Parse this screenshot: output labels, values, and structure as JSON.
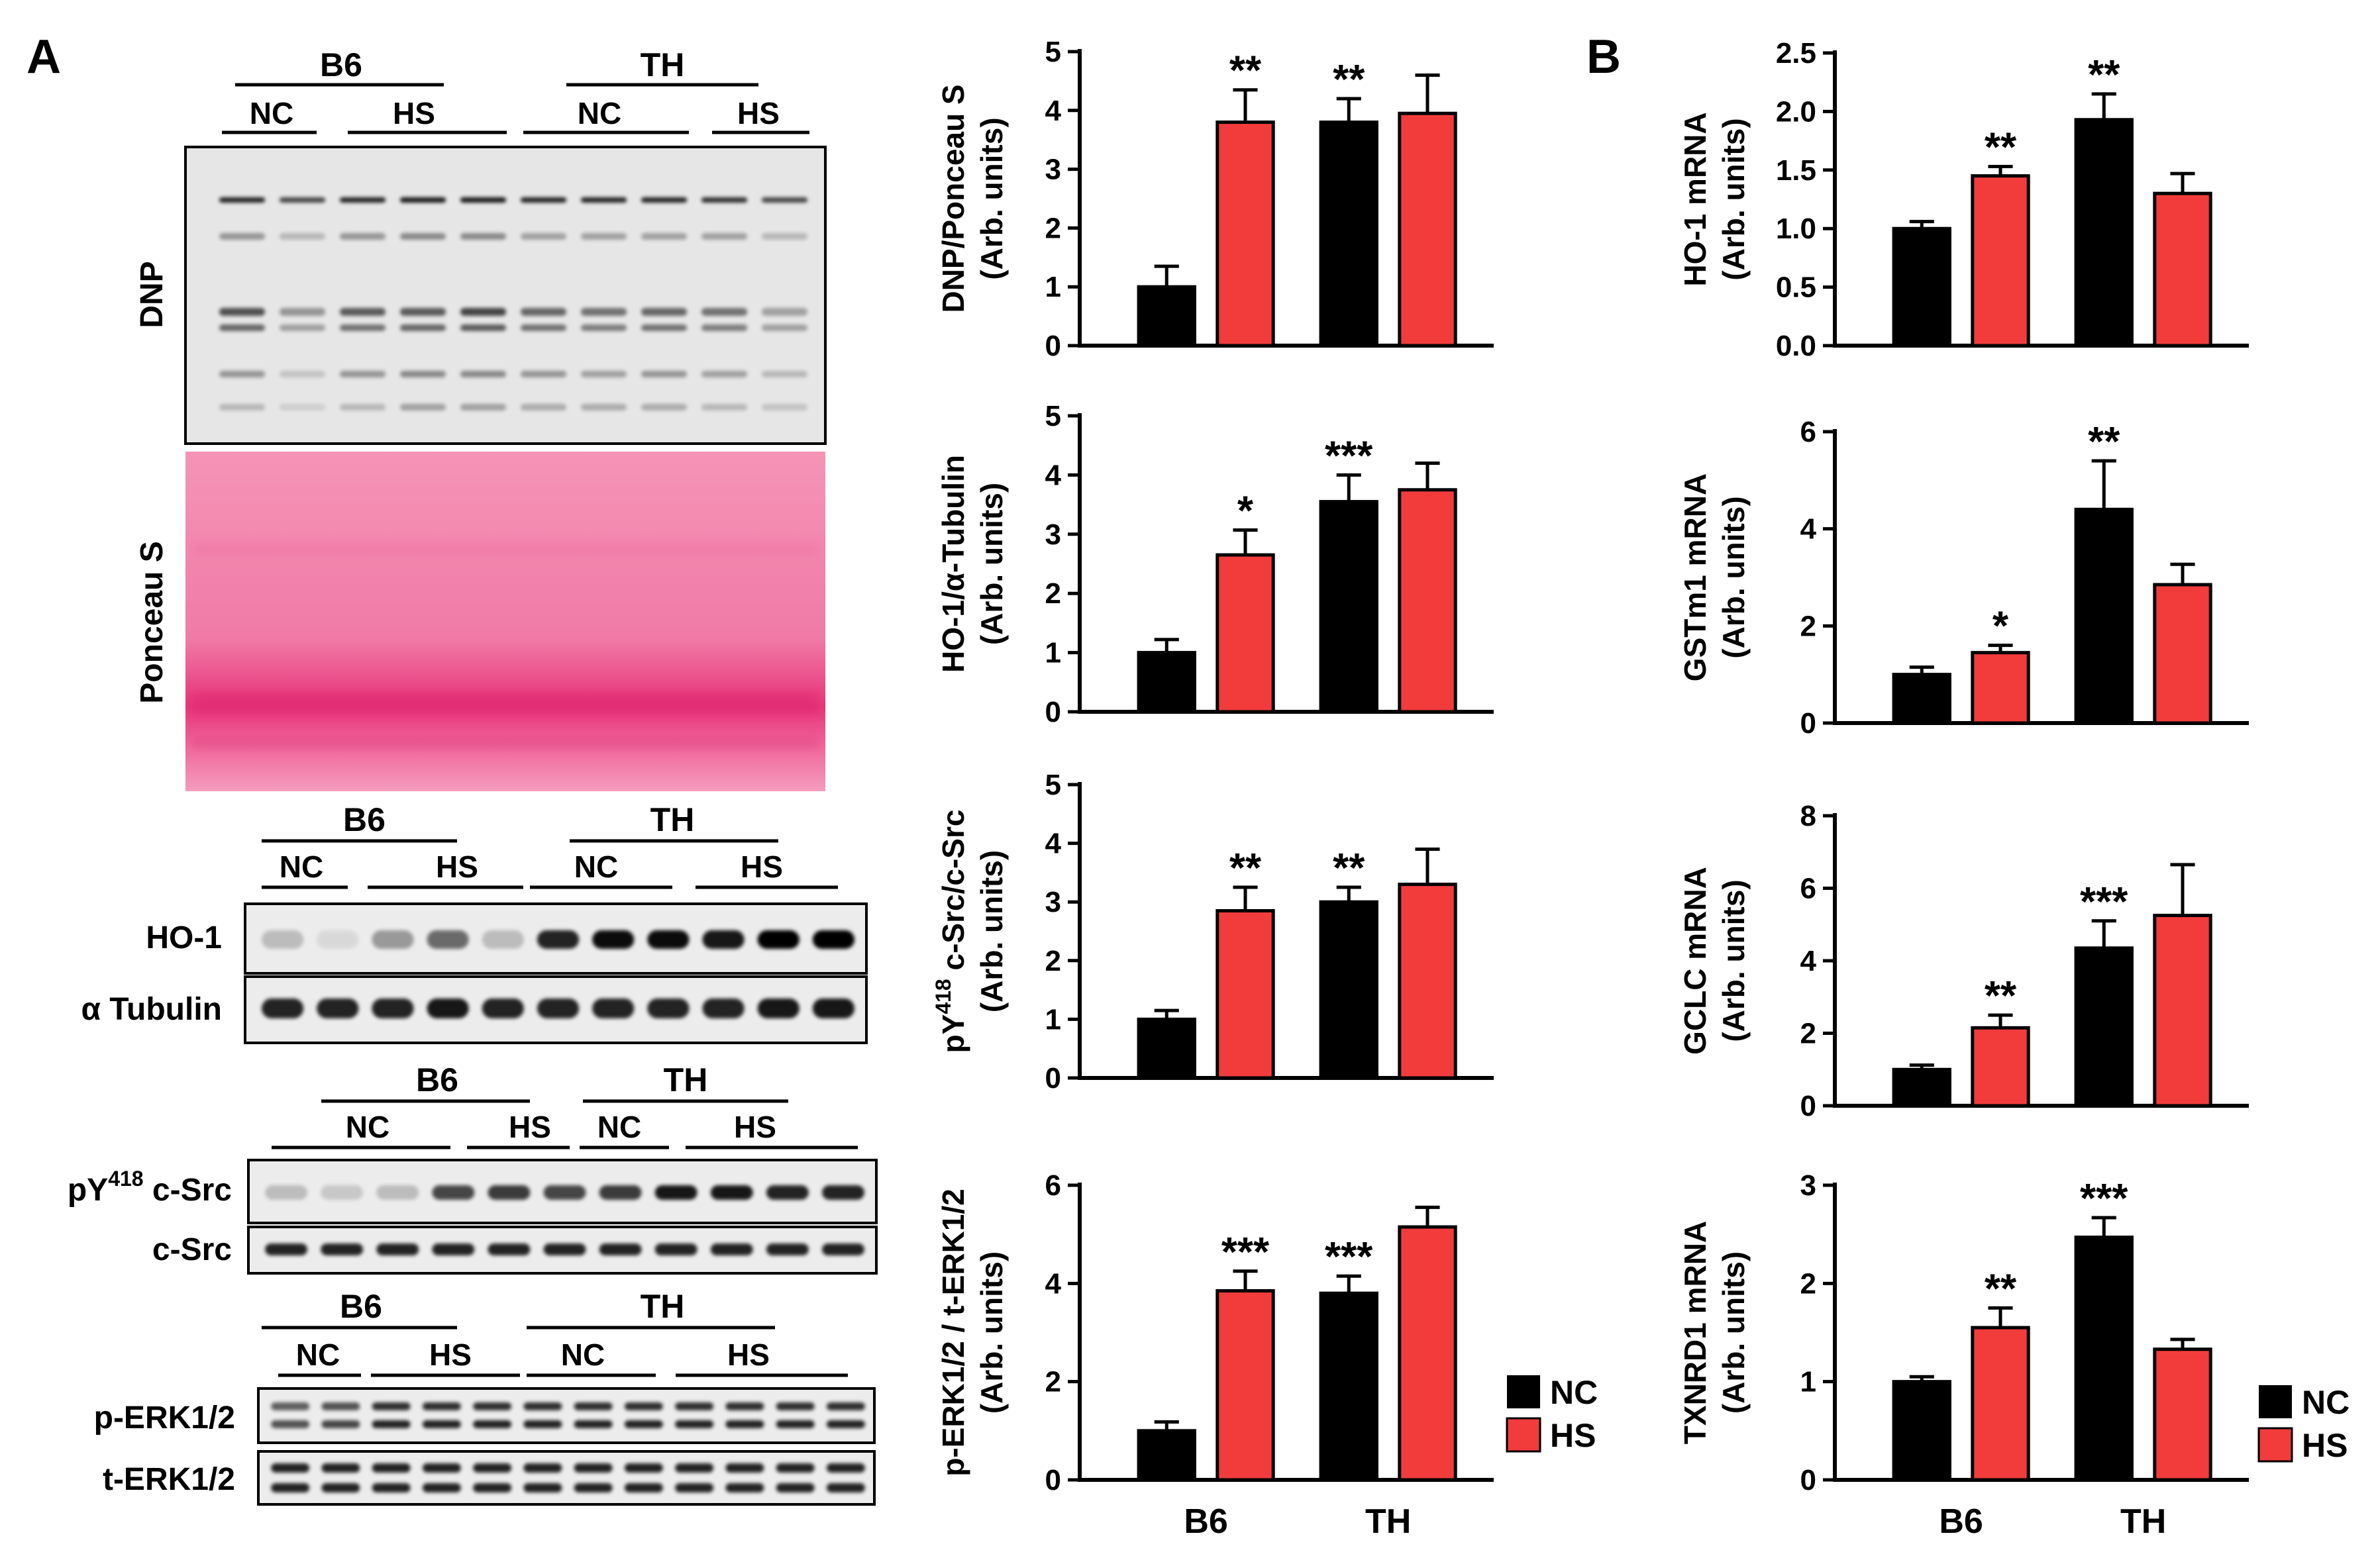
{
  "panels": {
    "a_label": "A",
    "b_label": "B"
  },
  "colors": {
    "nc": "#000000",
    "hs": "#f23c3c",
    "ponceau": "#f0608f"
  },
  "legend": {
    "nc": "NC",
    "hs": "HS"
  },
  "blots": {
    "top": {
      "groups": [
        "B6",
        "TH"
      ],
      "subgroups": [
        "NC",
        "HS",
        "NC",
        "HS"
      ],
      "labels": [
        "DNP",
        "Ponceau S"
      ]
    },
    "ho1": {
      "groups": [
        "B6",
        "TH"
      ],
      "subgroups": [
        "NC",
        "HS",
        "NC",
        "HS"
      ],
      "labels": [
        "HO-1",
        "α Tubulin"
      ]
    },
    "src": {
      "groups": [
        "B6",
        "TH"
      ],
      "subgroups": [
        "NC",
        "HS",
        "NC",
        "HS"
      ],
      "labels": [
        "pY",
        "418",
        " c-Src",
        "c-Src"
      ]
    },
    "erk": {
      "groups": [
        "B6",
        "TH"
      ],
      "subgroups": [
        "NC",
        "HS",
        "NC",
        "HS"
      ],
      "labels": [
        "p-ERK1/2",
        "t-ERK1/2"
      ]
    }
  },
  "chart_data": [
    {
      "type": "bar",
      "id": "dnp",
      "ylabel": [
        "DNP/Ponceau S",
        "(Arb. units)"
      ],
      "categories": [
        "B6",
        "TH"
      ],
      "ylim": [
        0,
        5
      ],
      "ticks": [
        "0",
        "1",
        "2",
        "3",
        "4",
        "5"
      ],
      "series": [
        {
          "name": "NC",
          "values": [
            1.0,
            3.8
          ],
          "errors": [
            0.35,
            0.4
          ],
          "stars": [
            "",
            "**"
          ]
        },
        {
          "name": "HS",
          "values": [
            3.8,
            3.95
          ],
          "errors": [
            0.55,
            0.65
          ],
          "stars": [
            "**",
            ""
          ]
        }
      ],
      "show_xlabels": false
    },
    {
      "type": "bar",
      "id": "ho1prot",
      "ylabel": [
        "HO-1/α-Tubulin",
        "(Arb. units)"
      ],
      "categories": [
        "B6",
        "TH"
      ],
      "ylim": [
        0,
        5
      ],
      "ticks": [
        "0",
        "1",
        "2",
        "3",
        "4",
        "5"
      ],
      "series": [
        {
          "name": "NC",
          "values": [
            1.0,
            3.55
          ],
          "errors": [
            0.22,
            0.45
          ],
          "stars": [
            "",
            "***"
          ]
        },
        {
          "name": "HS",
          "values": [
            2.65,
            3.75
          ],
          "errors": [
            0.42,
            0.45
          ],
          "stars": [
            "*",
            ""
          ]
        }
      ],
      "show_xlabels": false
    },
    {
      "type": "bar",
      "id": "src",
      "ylabel": [
        "pY418 c-Src/c-Src",
        "(Arb. units)"
      ],
      "categories": [
        "B6",
        "TH"
      ],
      "ylim": [
        0,
        5
      ],
      "ticks": [
        "0",
        "1",
        "2",
        "3",
        "4",
        "5"
      ],
      "series": [
        {
          "name": "NC",
          "values": [
            1.0,
            3.0
          ],
          "errors": [
            0.15,
            0.25
          ],
          "stars": [
            "",
            "**"
          ]
        },
        {
          "name": "HS",
          "values": [
            2.85,
            3.3
          ],
          "errors": [
            0.4,
            0.6
          ],
          "stars": [
            "**",
            ""
          ]
        }
      ],
      "show_xlabels": false
    },
    {
      "type": "bar",
      "id": "erk",
      "ylabel": [
        "p-ERK1/2 / t-ERK1/2",
        "(Arb. units)"
      ],
      "categories": [
        "B6",
        "TH"
      ],
      "ylim": [
        0,
        6
      ],
      "ticks": [
        "0",
        "2",
        "4",
        "6"
      ],
      "series": [
        {
          "name": "NC",
          "values": [
            1.0,
            3.8
          ],
          "errors": [
            0.18,
            0.35
          ],
          "stars": [
            "",
            "***"
          ]
        },
        {
          "name": "HS",
          "values": [
            3.85,
            5.15
          ],
          "errors": [
            0.4,
            0.4
          ],
          "stars": [
            "***",
            ""
          ]
        }
      ],
      "show_xlabels": true,
      "legend": "right"
    },
    {
      "type": "bar",
      "id": "ho1mrna",
      "ylabel": [
        "HO-1 mRNA",
        "(Arb. units)"
      ],
      "categories": [
        "B6",
        "TH"
      ],
      "ylim": [
        0,
        2.5
      ],
      "ticks": [
        "0.0",
        "0.5",
        "1.0",
        "1.5",
        "2.0",
        "2.5"
      ],
      "series": [
        {
          "name": "NC",
          "values": [
            1.0,
            1.93
          ],
          "errors": [
            0.06,
            0.22
          ],
          "stars": [
            "",
            "**"
          ]
        },
        {
          "name": "HS",
          "values": [
            1.45,
            1.3
          ],
          "errors": [
            0.08,
            0.17
          ],
          "stars": [
            "**",
            ""
          ]
        }
      ],
      "show_xlabels": false
    },
    {
      "type": "bar",
      "id": "gstm1",
      "ylabel": [
        "GSTm1 mRNA",
        "(Arb. units)"
      ],
      "categories": [
        "B6",
        "TH"
      ],
      "ylim": [
        0,
        6
      ],
      "ticks": [
        "0",
        "2",
        "4",
        "6"
      ],
      "series": [
        {
          "name": "NC",
          "values": [
            1.0,
            4.4
          ],
          "errors": [
            0.15,
            1.0
          ],
          "stars": [
            "",
            "**"
          ]
        },
        {
          "name": "HS",
          "values": [
            1.45,
            2.85
          ],
          "errors": [
            0.15,
            0.42
          ],
          "stars": [
            "*",
            ""
          ]
        }
      ],
      "show_xlabels": false
    },
    {
      "type": "bar",
      "id": "gclc",
      "ylabel": [
        "GCLC mRNA",
        "(Arb. units)"
      ],
      "categories": [
        "B6",
        "TH"
      ],
      "ylim": [
        0,
        8
      ],
      "ticks": [
        "0",
        "2",
        "4",
        "6",
        "8"
      ],
      "series": [
        {
          "name": "NC",
          "values": [
            1.0,
            4.35
          ],
          "errors": [
            0.12,
            0.75
          ],
          "stars": [
            "",
            "***"
          ]
        },
        {
          "name": "HS",
          "values": [
            2.15,
            5.25
          ],
          "errors": [
            0.35,
            1.4
          ],
          "stars": [
            "**",
            ""
          ]
        }
      ],
      "show_xlabels": false
    },
    {
      "type": "bar",
      "id": "txnrd1",
      "ylabel": [
        "TXNRD1 mRNA",
        "(Arb. units)"
      ],
      "categories": [
        "B6",
        "TH"
      ],
      "ylim": [
        0,
        3
      ],
      "ticks": [
        "0",
        "1",
        "2",
        "3"
      ],
      "series": [
        {
          "name": "NC",
          "values": [
            1.0,
            2.47
          ],
          "errors": [
            0.05,
            0.2
          ],
          "stars": [
            "",
            "***"
          ]
        },
        {
          "name": "HS",
          "values": [
            1.55,
            1.33
          ],
          "errors": [
            0.2,
            0.1
          ],
          "stars": [
            "**",
            ""
          ]
        }
      ],
      "show_xlabels": true,
      "legend": "right"
    }
  ]
}
